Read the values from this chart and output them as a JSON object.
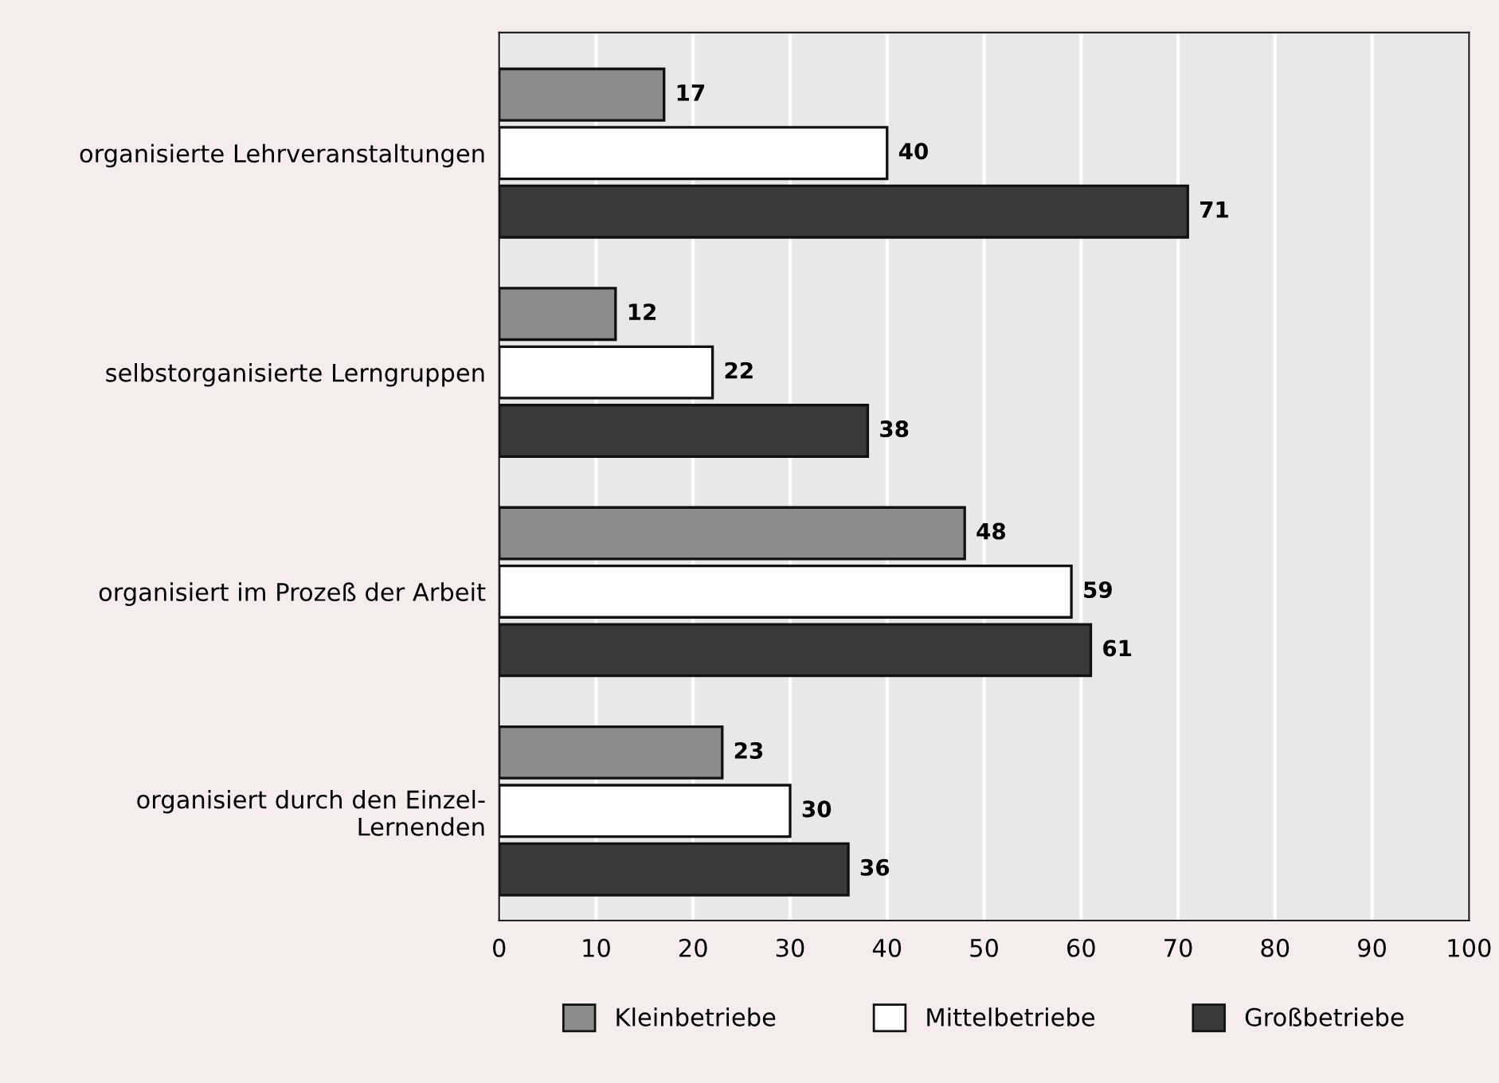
{
  "chart_data": {
    "type": "bar",
    "orientation": "horizontal",
    "categories": [
      "organisierte Lehrveranstaltungen",
      "selbstorganisierte Lerngruppen",
      "organisiert im Prozeß der Arbeit",
      "organisiert durch den Einzel-\nLernenden"
    ],
    "series": [
      {
        "name": "Kleinbetriebe",
        "color": "#8c8c8c",
        "values": [
          17,
          12,
          48,
          23
        ]
      },
      {
        "name": "Mittelbetriebe",
        "color": "#ffffff",
        "values": [
          40,
          22,
          59,
          30
        ]
      },
      {
        "name": "Großbetriebe",
        "color": "#3a3a3a",
        "values": [
          71,
          38,
          61,
          36
        ]
      }
    ],
    "xlim": [
      0,
      100
    ],
    "xticks": [
      0,
      10,
      20,
      30,
      40,
      50,
      60,
      70,
      80,
      90,
      100
    ],
    "grid": "x",
    "legend": "bottom",
    "data_labels": true
  }
}
